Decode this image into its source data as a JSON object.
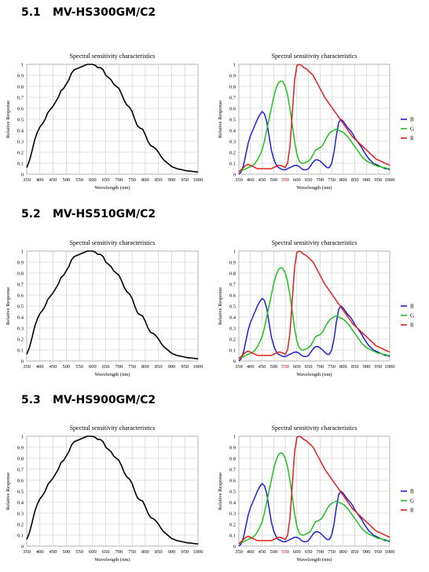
{
  "sections": [
    {
      "number": "5.1",
      "model": "MV-HS300GM/C2"
    },
    {
      "number": "5.2",
      "model": "MV-HS510GM/C2"
    },
    {
      "number": "5.3",
      "model": "MV-HS900GM/C2"
    }
  ],
  "colors": {
    "B": "#1f1fd6",
    "G": "#1fbf1f",
    "R": "#e01f1f",
    "mono": "#000000",
    "grid": "#c8c8c8"
  },
  "chart_data": [
    {
      "type": "line",
      "title": "Spectral sensitivity characteristics",
      "xlabel": "Wavelength (nm)",
      "ylabel": "Relative Response",
      "xlim": [
        350,
        1000
      ],
      "ylim": [
        0,
        1
      ],
      "xticks": [
        "350",
        "400",
        "450",
        "500",
        "550",
        "600",
        "650",
        "700",
        "750",
        "800",
        "850",
        "900",
        "950",
        "1000"
      ],
      "yticks": [
        "0",
        "0.1",
        "0.2",
        "0.3",
        "0.4",
        "0.5",
        "0.6",
        "0.7",
        "0.8",
        "0.9",
        "1"
      ],
      "grid": true,
      "series": [
        {
          "key": "mono",
          "x": [
            350,
            360,
            370,
            380,
            390,
            400,
            410,
            420,
            430,
            440,
            450,
            460,
            470,
            480,
            490,
            500,
            510,
            520,
            530,
            540,
            550,
            560,
            570,
            580,
            590,
            600,
            610,
            620,
            630,
            640,
            650,
            660,
            670,
            680,
            690,
            700,
            710,
            720,
            730,
            740,
            750,
            760,
            770,
            780,
            790,
            800,
            810,
            820,
            830,
            840,
            850,
            860,
            870,
            880,
            890,
            900,
            910,
            920,
            930,
            940,
            950,
            960,
            970,
            980,
            990,
            1000
          ],
          "y": [
            0.06,
            0.12,
            0.21,
            0.31,
            0.38,
            0.43,
            0.46,
            0.5,
            0.56,
            0.59,
            0.62,
            0.66,
            0.7,
            0.76,
            0.78,
            0.82,
            0.86,
            0.92,
            0.95,
            0.96,
            0.97,
            0.98,
            0.99,
            1.0,
            1.0,
            1.0,
            0.99,
            0.97,
            0.97,
            0.95,
            0.9,
            0.88,
            0.86,
            0.82,
            0.8,
            0.78,
            0.73,
            0.67,
            0.63,
            0.61,
            0.57,
            0.5,
            0.44,
            0.42,
            0.41,
            0.36,
            0.3,
            0.26,
            0.25,
            0.23,
            0.2,
            0.16,
            0.13,
            0.11,
            0.09,
            0.07,
            0.06,
            0.05,
            0.045,
            0.04,
            0.035,
            0.03,
            0.028,
            0.025,
            0.022,
            0.02
          ]
        }
      ]
    },
    {
      "type": "line",
      "title": "Spectral sensitivity characteristics",
      "xlabel": "Wavelength (nm)",
      "ylabel": "Relative Response",
      "xlim": [
        350,
        1000
      ],
      "ylim": [
        0,
        1
      ],
      "xticks": [
        "350",
        "400",
        "450",
        "500",
        "550",
        "600",
        "650",
        "700",
        "750",
        "800",
        "850",
        "900",
        "950",
        "1000"
      ],
      "yticks": [
        "0",
        "0.1",
        "0.2",
        "0.3",
        "0.4",
        "0.5",
        "0.6",
        "0.7",
        "0.8",
        "0.9",
        "1"
      ],
      "legend": "right",
      "grid": true,
      "series": [
        {
          "name": "B",
          "key": "B",
          "x": [
            350,
            360,
            370,
            380,
            390,
            400,
            410,
            420,
            430,
            440,
            450,
            460,
            470,
            480,
            490,
            500,
            510,
            520,
            530,
            540,
            550,
            560,
            570,
            580,
            590,
            600,
            610,
            620,
            630,
            640,
            650,
            660,
            670,
            680,
            690,
            700,
            710,
            720,
            730,
            740,
            750,
            760,
            770,
            780,
            790,
            800,
            810,
            820,
            830,
            840,
            850,
            860,
            870,
            880,
            890,
            900,
            910,
            920,
            930,
            940,
            950,
            960,
            970,
            980,
            990,
            1000
          ],
          "y": [
            0.0,
            0.02,
            0.08,
            0.18,
            0.28,
            0.35,
            0.4,
            0.45,
            0.5,
            0.54,
            0.57,
            0.55,
            0.48,
            0.35,
            0.22,
            0.14,
            0.09,
            0.06,
            0.05,
            0.04,
            0.04,
            0.05,
            0.06,
            0.07,
            0.08,
            0.08,
            0.07,
            0.05,
            0.04,
            0.04,
            0.05,
            0.08,
            0.11,
            0.13,
            0.13,
            0.12,
            0.1,
            0.08,
            0.06,
            0.06,
            0.1,
            0.2,
            0.35,
            0.47,
            0.5,
            0.48,
            0.45,
            0.42,
            0.4,
            0.37,
            0.33,
            0.3,
            0.27,
            0.24,
            0.2,
            0.17,
            0.14,
            0.12,
            0.1,
            0.09,
            0.08,
            0.07,
            0.06,
            0.05,
            0.05,
            0.04
          ]
        },
        {
          "name": "G",
          "key": "G",
          "x": [
            350,
            360,
            370,
            380,
            390,
            400,
            410,
            420,
            430,
            440,
            450,
            460,
            470,
            480,
            490,
            500,
            510,
            520,
            530,
            540,
            550,
            560,
            570,
            580,
            590,
            600,
            610,
            620,
            630,
            640,
            650,
            660,
            670,
            680,
            690,
            700,
            710,
            720,
            730,
            740,
            750,
            760,
            770,
            780,
            790,
            800,
            810,
            820,
            830,
            840,
            850,
            860,
            870,
            880,
            890,
            900,
            910,
            920,
            930,
            940,
            950,
            960,
            970,
            980,
            990,
            1000
          ],
          "y": [
            0.03,
            0.03,
            0.04,
            0.05,
            0.06,
            0.07,
            0.08,
            0.1,
            0.13,
            0.17,
            0.22,
            0.3,
            0.4,
            0.5,
            0.6,
            0.7,
            0.78,
            0.83,
            0.85,
            0.84,
            0.8,
            0.72,
            0.6,
            0.45,
            0.3,
            0.18,
            0.12,
            0.1,
            0.1,
            0.11,
            0.12,
            0.14,
            0.18,
            0.22,
            0.23,
            0.24,
            0.26,
            0.3,
            0.34,
            0.37,
            0.39,
            0.4,
            0.41,
            0.4,
            0.39,
            0.38,
            0.36,
            0.34,
            0.31,
            0.28,
            0.25,
            0.22,
            0.19,
            0.16,
            0.14,
            0.12,
            0.11,
            0.1,
            0.09,
            0.08,
            0.07,
            0.07,
            0.06,
            0.06,
            0.05,
            0.05
          ]
        },
        {
          "name": "R",
          "key": "R",
          "x": [
            350,
            360,
            370,
            380,
            390,
            400,
            410,
            420,
            430,
            440,
            450,
            460,
            470,
            480,
            490,
            500,
            510,
            520,
            530,
            540,
            550,
            560,
            570,
            580,
            590,
            600,
            610,
            620,
            630,
            640,
            650,
            660,
            670,
            680,
            690,
            700,
            710,
            720,
            730,
            740,
            750,
            760,
            770,
            780,
            790,
            800,
            810,
            820,
            830,
            840,
            850,
            860,
            870,
            880,
            890,
            900,
            910,
            920,
            930,
            940,
            950,
            960,
            970,
            980,
            990,
            1000
          ],
          "y": [
            0.02,
            0.04,
            0.06,
            0.08,
            0.09,
            0.08,
            0.07,
            0.06,
            0.05,
            0.05,
            0.05,
            0.05,
            0.05,
            0.05,
            0.05,
            0.06,
            0.07,
            0.08,
            0.08,
            0.07,
            0.06,
            0.1,
            0.25,
            0.55,
            0.85,
            0.99,
            1.0,
            0.99,
            0.97,
            0.96,
            0.94,
            0.92,
            0.9,
            0.86,
            0.82,
            0.78,
            0.74,
            0.7,
            0.67,
            0.64,
            0.61,
            0.58,
            0.55,
            0.52,
            0.49,
            0.46,
            0.43,
            0.4,
            0.37,
            0.34,
            0.32,
            0.3,
            0.28,
            0.26,
            0.24,
            0.22,
            0.2,
            0.18,
            0.16,
            0.14,
            0.13,
            0.12,
            0.11,
            0.1,
            0.09,
            0.08
          ]
        }
      ]
    }
  ]
}
